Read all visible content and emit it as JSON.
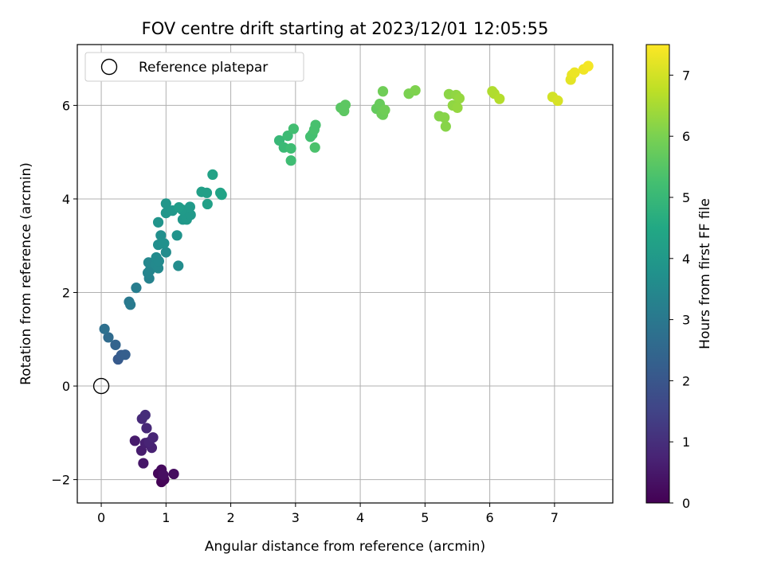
{
  "chart_data": {
    "type": "scatter",
    "title": "FOV centre drift starting at 2023/12/01 12:05:55",
    "xlabel": "Angular distance from reference (arcmin)",
    "ylabel": "Rotation from reference (arcmin)",
    "xlim": [
      -0.37,
      7.9
    ],
    "ylim": [
      -2.5,
      7.3
    ],
    "xticks": [
      0,
      1,
      2,
      3,
      4,
      5,
      6,
      7
    ],
    "yticks": [
      -2,
      0,
      2,
      4,
      6
    ],
    "ytick_labels": [
      "−2",
      "0",
      "2",
      "4",
      "6"
    ],
    "grid": true,
    "legend": {
      "position": "top-left",
      "entries": [
        {
          "label": "Reference platepar",
          "marker": "open-circle"
        }
      ]
    },
    "reference_point": {
      "x": 0,
      "y": 0
    },
    "colorbar": {
      "label": "Hours from first FF file",
      "colormap": "viridis",
      "range": [
        0,
        7.5
      ],
      "ticks": [
        0,
        1,
        2,
        3,
        4,
        5,
        6,
        7
      ]
    },
    "series": [
      {
        "points": [
          {
            "x": 0.93,
            "y": -2.05,
            "c": 0.05
          },
          {
            "x": 0.97,
            "y": -2.0,
            "c": 0.1
          },
          {
            "x": 0.88,
            "y": -1.87,
            "c": 0.15
          },
          {
            "x": 0.93,
            "y": -1.79,
            "c": 0.2
          },
          {
            "x": 1.12,
            "y": -1.88,
            "c": 0.25
          },
          {
            "x": 0.96,
            "y": -1.9,
            "c": 0.3
          },
          {
            "x": 0.65,
            "y": -1.65,
            "c": 0.45
          },
          {
            "x": 0.52,
            "y": -1.17,
            "c": 0.55
          },
          {
            "x": 0.62,
            "y": -1.38,
            "c": 0.6
          },
          {
            "x": 0.68,
            "y": -1.22,
            "c": 0.65
          },
          {
            "x": 0.78,
            "y": -1.32,
            "c": 0.7
          },
          {
            "x": 0.74,
            "y": -1.2,
            "c": 0.75
          },
          {
            "x": 0.8,
            "y": -1.1,
            "c": 0.8
          },
          {
            "x": 0.7,
            "y": -0.9,
            "c": 0.85
          },
          {
            "x": 0.63,
            "y": -0.7,
            "c": 0.9
          },
          {
            "x": 0.68,
            "y": -0.62,
            "c": 0.95
          },
          {
            "x": 0.26,
            "y": 0.57,
            "c": 2.1
          },
          {
            "x": 0.31,
            "y": 0.66,
            "c": 2.2
          },
          {
            "x": 0.37,
            "y": 0.67,
            "c": 2.25
          },
          {
            "x": 0.22,
            "y": 0.88,
            "c": 2.4
          },
          {
            "x": 0.11,
            "y": 1.04,
            "c": 2.6
          },
          {
            "x": 0.05,
            "y": 1.22,
            "c": 2.75
          },
          {
            "x": 0.43,
            "y": 1.8,
            "c": 3.0
          },
          {
            "x": 0.45,
            "y": 1.74,
            "c": 3.05
          },
          {
            "x": 0.54,
            "y": 2.1,
            "c": 3.15
          },
          {
            "x": 0.74,
            "y": 2.3,
            "c": 3.3
          },
          {
            "x": 0.72,
            "y": 2.42,
            "c": 3.35
          },
          {
            "x": 0.75,
            "y": 2.47,
            "c": 3.4
          },
          {
            "x": 0.73,
            "y": 2.64,
            "c": 3.45
          },
          {
            "x": 0.84,
            "y": 2.6,
            "c": 3.5
          },
          {
            "x": 0.88,
            "y": 2.52,
            "c": 3.5
          },
          {
            "x": 0.85,
            "y": 2.75,
            "c": 3.55
          },
          {
            "x": 0.89,
            "y": 2.67,
            "c": 3.55
          },
          {
            "x": 1.0,
            "y": 2.86,
            "c": 3.6
          },
          {
            "x": 1.19,
            "y": 2.57,
            "c": 3.6
          },
          {
            "x": 0.88,
            "y": 3.02,
            "c": 3.65
          },
          {
            "x": 0.92,
            "y": 3.22,
            "c": 3.7
          },
          {
            "x": 0.97,
            "y": 3.05,
            "c": 3.75
          },
          {
            "x": 1.17,
            "y": 3.22,
            "c": 3.8
          },
          {
            "x": 0.88,
            "y": 3.5,
            "c": 3.85
          },
          {
            "x": 1.0,
            "y": 3.7,
            "c": 3.9
          },
          {
            "x": 1.0,
            "y": 3.9,
            "c": 3.9
          },
          {
            "x": 1.1,
            "y": 3.75,
            "c": 3.95
          },
          {
            "x": 1.26,
            "y": 3.56,
            "c": 3.95
          },
          {
            "x": 1.32,
            "y": 3.56,
            "c": 4.0
          },
          {
            "x": 1.3,
            "y": 3.65,
            "c": 4.0
          },
          {
            "x": 1.38,
            "y": 3.66,
            "c": 4.0
          },
          {
            "x": 1.25,
            "y": 3.77,
            "c": 4.05
          },
          {
            "x": 1.37,
            "y": 3.83,
            "c": 4.05
          },
          {
            "x": 1.2,
            "y": 3.82,
            "c": 4.1
          },
          {
            "x": 1.55,
            "y": 4.15,
            "c": 4.2
          },
          {
            "x": 1.63,
            "y": 4.13,
            "c": 4.2
          },
          {
            "x": 1.64,
            "y": 3.89,
            "c": 4.25
          },
          {
            "x": 1.72,
            "y": 4.52,
            "c": 4.3
          },
          {
            "x": 1.84,
            "y": 4.13,
            "c": 4.35
          },
          {
            "x": 1.86,
            "y": 4.09,
            "c": 4.35
          },
          {
            "x": 2.75,
            "y": 5.25,
            "c": 5.0
          },
          {
            "x": 2.82,
            "y": 5.1,
            "c": 5.05
          },
          {
            "x": 2.88,
            "y": 5.35,
            "c": 5.1
          },
          {
            "x": 2.93,
            "y": 5.08,
            "c": 5.15
          },
          {
            "x": 2.93,
            "y": 4.82,
            "c": 5.15
          },
          {
            "x": 2.97,
            "y": 5.5,
            "c": 5.2
          },
          {
            "x": 3.23,
            "y": 5.33,
            "c": 5.25
          },
          {
            "x": 3.26,
            "y": 5.38,
            "c": 5.25
          },
          {
            "x": 3.29,
            "y": 5.48,
            "c": 5.3
          },
          {
            "x": 3.31,
            "y": 5.58,
            "c": 5.3
          },
          {
            "x": 3.3,
            "y": 5.1,
            "c": 5.35
          },
          {
            "x": 3.7,
            "y": 5.95,
            "c": 5.55
          },
          {
            "x": 3.75,
            "y": 5.88,
            "c": 5.6
          },
          {
            "x": 3.77,
            "y": 6.01,
            "c": 5.6
          },
          {
            "x": 4.25,
            "y": 5.93,
            "c": 5.7
          },
          {
            "x": 4.3,
            "y": 6.03,
            "c": 5.75
          },
          {
            "x": 4.33,
            "y": 5.82,
            "c": 5.8
          },
          {
            "x": 4.35,
            "y": 5.8,
            "c": 5.8
          },
          {
            "x": 4.38,
            "y": 5.9,
            "c": 5.85
          },
          {
            "x": 4.35,
            "y": 6.3,
            "c": 5.85
          },
          {
            "x": 4.75,
            "y": 6.25,
            "c": 6.0
          },
          {
            "x": 4.85,
            "y": 6.32,
            "c": 6.05
          },
          {
            "x": 5.22,
            "y": 5.77,
            "c": 6.1
          },
          {
            "x": 5.3,
            "y": 5.74,
            "c": 6.15
          },
          {
            "x": 5.32,
            "y": 5.55,
            "c": 6.15
          },
          {
            "x": 5.37,
            "y": 6.24,
            "c": 6.2
          },
          {
            "x": 5.43,
            "y": 6.0,
            "c": 6.25
          },
          {
            "x": 5.48,
            "y": 6.22,
            "c": 6.25
          },
          {
            "x": 5.5,
            "y": 5.95,
            "c": 6.3
          },
          {
            "x": 5.53,
            "y": 6.15,
            "c": 6.3
          },
          {
            "x": 6.04,
            "y": 6.3,
            "c": 6.6
          },
          {
            "x": 6.07,
            "y": 6.25,
            "c": 6.6
          },
          {
            "x": 6.15,
            "y": 6.14,
            "c": 6.65
          },
          {
            "x": 6.97,
            "y": 6.18,
            "c": 7.0
          },
          {
            "x": 7.05,
            "y": 6.1,
            "c": 7.05
          },
          {
            "x": 7.25,
            "y": 6.55,
            "c": 7.2
          },
          {
            "x": 7.27,
            "y": 6.65,
            "c": 7.25
          },
          {
            "x": 7.31,
            "y": 6.7,
            "c": 7.3
          },
          {
            "x": 7.45,
            "y": 6.77,
            "c": 7.35
          },
          {
            "x": 7.52,
            "y": 6.84,
            "c": 7.4
          }
        ]
      }
    ]
  }
}
